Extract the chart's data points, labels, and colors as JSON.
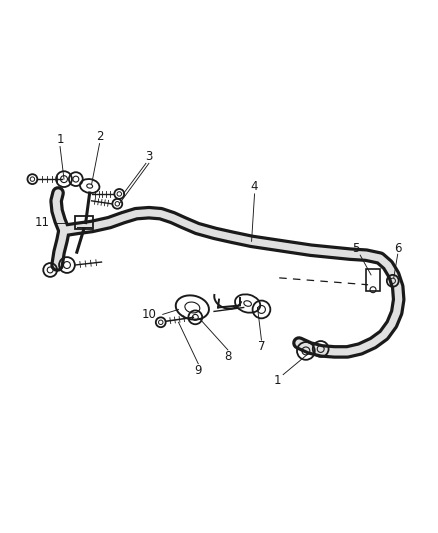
{
  "background_color": "#ffffff",
  "line_color": "#1a1a1a",
  "label_color": "#1a1a1a",
  "fig_width": 4.38,
  "fig_height": 5.33,
  "dpi": 100,
  "bar_outer_color": "#1a1a1a",
  "bar_inner_color": "#e0e0e0",
  "bar_lw_outer": 7.0,
  "bar_lw_inner": 4.0,
  "label_fontsize": 8.5
}
